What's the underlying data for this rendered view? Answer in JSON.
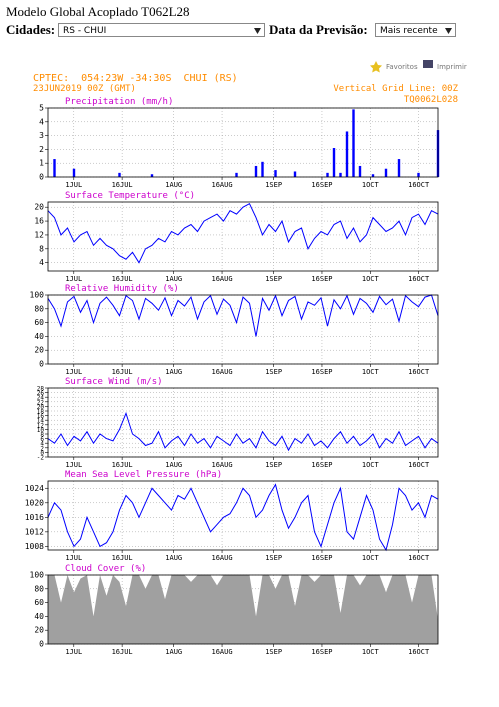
{
  "header": {
    "title": "Modelo Global Acoplado T062L28",
    "cidades_label": "Cidades:",
    "cidade": "RS - CHUI",
    "data_label": "Data da Previsão:",
    "data_value": "Mais recente",
    "favoritos": "Favoritos",
    "imprimir": "Imprimir"
  },
  "meteogram": {
    "station": "CPTEC:  054:23W -34:30S  CHUI (RS)",
    "date": "23JUN2019 00Z (GMT)",
    "grid_note": "Vertical Grid Line: 00Z",
    "model": "TQ0062L028"
  },
  "chart_data": [
    {
      "type": "bar",
      "title": "Precipitation (mm/h)",
      "color": "#0000ff",
      "xlim": [
        0,
        121
      ],
      "xticks": [
        {
          "value": 8,
          "label": "1JUL"
        },
        {
          "value": 23,
          "label": "16JUL"
        },
        {
          "value": 39,
          "label": "1AUG"
        },
        {
          "value": 54,
          "label": "16AUG"
        },
        {
          "value": 70,
          "label": "1SEP"
        },
        {
          "value": 85,
          "label": "16SEP"
        },
        {
          "value": 100,
          "label": "1OCT"
        },
        {
          "value": 115,
          "label": "16OCT"
        }
      ],
      "ylim": [
        0,
        5
      ],
      "yticks": [
        0,
        1,
        2,
        3,
        4,
        5
      ],
      "values": [
        0,
        1.3,
        0,
        0,
        0.6,
        0,
        0,
        0,
        0,
        0,
        0,
        0.3,
        0,
        0,
        0,
        0,
        0.2,
        0,
        0,
        0,
        0,
        0,
        0,
        0,
        0,
        0,
        0,
        0,
        0,
        0.3,
        0,
        0,
        0.8,
        1.1,
        0,
        0.5,
        0,
        0,
        0.4,
        0,
        0,
        0,
        0,
        0.3,
        2.1,
        0.3,
        3.3,
        4.9,
        0.8,
        0,
        0.2,
        0,
        0.6,
        0,
        1.3,
        0,
        0,
        0.3,
        0,
        0,
        3.4
      ]
    },
    {
      "type": "line",
      "title": "Surface Temperature (°C)",
      "color": "#0000ff",
      "xlim": [
        0,
        121
      ],
      "xticks": [
        {
          "value": 8,
          "label": "1JUL"
        },
        {
          "value": 23,
          "label": "16JUL"
        },
        {
          "value": 39,
          "label": "1AUG"
        },
        {
          "value": 54,
          "label": "16AUG"
        },
        {
          "value": 70,
          "label": "1SEP"
        },
        {
          "value": 85,
          "label": "16SEP"
        },
        {
          "value": 100,
          "label": "1OCT"
        },
        {
          "value": 115,
          "label": "16OCT"
        }
      ],
      "ylim": [
        1.6,
        21.5
      ],
      "yticks": [
        4,
        8,
        12,
        16,
        20
      ],
      "values": [
        19,
        17,
        12,
        14,
        10,
        12,
        13,
        9,
        11,
        9,
        8,
        6,
        5,
        7,
        4,
        8,
        9,
        11,
        10,
        13,
        12,
        14,
        15,
        13,
        16,
        17,
        18,
        16,
        19,
        18,
        20,
        21,
        17,
        12,
        15,
        13,
        16,
        10,
        13,
        14,
        8,
        11,
        13,
        12,
        15,
        16,
        11,
        14,
        10,
        12,
        17,
        15,
        13,
        14,
        16,
        12,
        17,
        18,
        15,
        19,
        18
      ]
    },
    {
      "type": "line",
      "title": "Relative Humidity (%)",
      "color": "#0000ff",
      "xlim": [
        0,
        121
      ],
      "xticks": [
        {
          "value": 8,
          "label": "1JUL"
        },
        {
          "value": 23,
          "label": "16JUL"
        },
        {
          "value": 39,
          "label": "1AUG"
        },
        {
          "value": 54,
          "label": "16AUG"
        },
        {
          "value": 70,
          "label": "1SEP"
        },
        {
          "value": 85,
          "label": "16SEP"
        },
        {
          "value": 100,
          "label": "1OCT"
        },
        {
          "value": 115,
          "label": "16OCT"
        }
      ],
      "ylim": [
        0,
        100
      ],
      "yticks": [
        0,
        20,
        40,
        60,
        80,
        100
      ],
      "values": [
        95,
        80,
        55,
        90,
        98,
        75,
        92,
        60,
        88,
        97,
        85,
        70,
        99,
        92,
        65,
        95,
        88,
        78,
        96,
        70,
        92,
        84,
        97,
        65,
        90,
        99,
        72,
        94,
        85,
        60,
        97,
        88,
        40,
        95,
        78,
        99,
        70,
        92,
        98,
        65,
        90,
        85,
        96,
        55,
        93,
        80,
        99,
        72,
        95,
        88,
        75,
        98,
        86,
        94,
        62,
        99,
        90,
        83,
        97,
        100,
        70
      ]
    },
    {
      "type": "line",
      "title": "Surface Wind (m/s)",
      "color": "#0000ff",
      "xlim": [
        0,
        121
      ],
      "xticks": [
        {
          "value": 8,
          "label": "1JUL"
        },
        {
          "value": 23,
          "label": "16JUL"
        },
        {
          "value": 39,
          "label": "1AUG"
        },
        {
          "value": 54,
          "label": "16AUG"
        },
        {
          "value": 70,
          "label": "1SEP"
        },
        {
          "value": 85,
          "label": "16SEP"
        },
        {
          "value": 100,
          "label": "1OCT"
        },
        {
          "value": 115,
          "label": "16OCT"
        }
      ],
      "ylim": [
        -2,
        28
      ],
      "yticks": [
        -2,
        0,
        2,
        4,
        6,
        8,
        10,
        12,
        14,
        16,
        18,
        20,
        22,
        24,
        26,
        28
      ],
      "values": [
        6,
        4,
        8,
        3,
        7,
        5,
        9,
        4,
        8,
        6,
        5,
        10,
        17,
        8,
        6,
        3,
        4,
        9,
        2,
        5,
        7,
        3,
        8,
        4,
        6,
        2,
        7,
        5,
        3,
        8,
        4,
        6,
        2,
        9,
        5,
        3,
        7,
        1,
        6,
        4,
        8,
        3,
        5,
        2,
        6,
        9,
        4,
        7,
        3,
        5,
        8,
        2,
        6,
        4,
        9,
        3,
        5,
        7,
        2,
        6,
        4
      ]
    },
    {
      "type": "line",
      "title": "Mean Sea Level Pressure (hPa)",
      "color": "#0000ff",
      "xlim": [
        0,
        121
      ],
      "xticks": [
        {
          "value": 8,
          "label": "1JUL"
        },
        {
          "value": 23,
          "label": "16JUL"
        },
        {
          "value": 39,
          "label": "1AUG"
        },
        {
          "value": 54,
          "label": "16AUG"
        },
        {
          "value": 70,
          "label": "1SEP"
        },
        {
          "value": 85,
          "label": "16SEP"
        },
        {
          "value": 100,
          "label": "1OCT"
        },
        {
          "value": 115,
          "label": "16OCT"
        }
      ],
      "ylim": [
        1007,
        1026
      ],
      "yticks": [
        1008,
        1012,
        1016,
        1020,
        1024
      ],
      "values": [
        1016,
        1020,
        1018,
        1012,
        1008,
        1010,
        1016,
        1012,
        1008,
        1009,
        1012,
        1018,
        1022,
        1020,
        1016,
        1020,
        1024,
        1022,
        1020,
        1018,
        1022,
        1021,
        1024,
        1020,
        1016,
        1012,
        1014,
        1016,
        1017,
        1020,
        1024,
        1022,
        1016,
        1018,
        1022,
        1025,
        1018,
        1013,
        1016,
        1020,
        1022,
        1012,
        1008,
        1014,
        1020,
        1024,
        1012,
        1010,
        1016,
        1022,
        1018,
        1010,
        1007,
        1014,
        1024,
        1022,
        1018,
        1020,
        1016,
        1022,
        1021
      ]
    },
    {
      "type": "area",
      "title": "Cloud Cover (%)",
      "color": "#a0a0a0",
      "xlim": [
        0,
        121
      ],
      "xticks": [
        {
          "value": 8,
          "label": "1JUL"
        },
        {
          "value": 23,
          "label": "16JUL"
        },
        {
          "value": 39,
          "label": "1AUG"
        },
        {
          "value": 54,
          "label": "16AUG"
        },
        {
          "value": 70,
          "label": "1SEP"
        },
        {
          "value": 85,
          "label": "16SEP"
        },
        {
          "value": 100,
          "label": "1OCT"
        },
        {
          "value": 115,
          "label": "16OCT"
        }
      ],
      "ylim": [
        0,
        100
      ],
      "yticks": [
        0,
        20,
        40,
        60,
        80,
        100
      ],
      "values": [
        100,
        100,
        60,
        100,
        75,
        95,
        100,
        40,
        100,
        70,
        100,
        90,
        55,
        100,
        100,
        80,
        100,
        100,
        65,
        100,
        100,
        100,
        90,
        100,
        100,
        100,
        85,
        100,
        100,
        100,
        100,
        100,
        40,
        100,
        100,
        80,
        100,
        100,
        55,
        100,
        100,
        90,
        100,
        100,
        100,
        45,
        100,
        100,
        85,
        100,
        100,
        100,
        75,
        100,
        100,
        100,
        60,
        100,
        100,
        100,
        35
      ]
    }
  ]
}
